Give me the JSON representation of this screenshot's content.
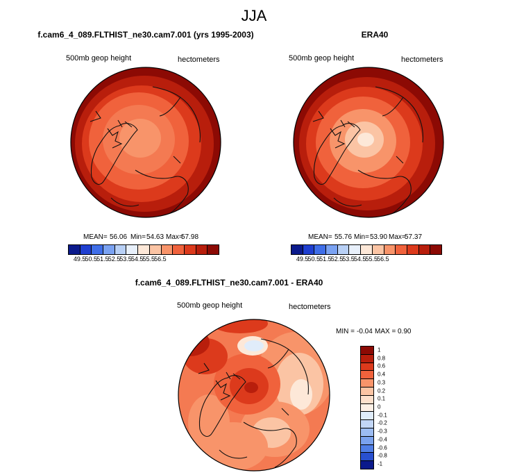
{
  "title": "JJA",
  "chart_data": [
    {
      "type": "heatmap",
      "title": "f.cam6_4_089.FLTHIST_ne30.cam7.001 (yrs 1995-2003)",
      "variable_label": "500mb geop height",
      "units_label": "hectometers",
      "stats": {
        "mean_label": "MEAN=",
        "mean": "56.06",
        "min_label": "Min=",
        "min": "54.63",
        "max_label": "Max=",
        "max": "57.98"
      },
      "colorbar_ticks": [
        "49.5",
        "50.5",
        "51.5",
        "52.5",
        "53.5",
        "54.5",
        "55.5",
        "56.5"
      ],
      "projection": "north polar stereographic"
    },
    {
      "type": "heatmap",
      "title": "ERA40",
      "variable_label": "500mb geop height",
      "units_label": "hectometers",
      "stats": {
        "mean_label": "MEAN=",
        "mean": "55.76",
        "min_label": "Min=",
        "min": "53.90",
        "max_label": "Max=",
        "max": "57.37"
      },
      "colorbar_ticks": [
        "49.5",
        "50.5",
        "51.5",
        "52.5",
        "53.5",
        "54.5",
        "55.5",
        "56.5"
      ],
      "projection": "north polar stereographic"
    },
    {
      "type": "heatmap",
      "title": "f.cam6_4_089.FLTHIST_ne30.cam7.001 - ERA40",
      "variable_label": "500mb geop height",
      "units_label": "hectometers",
      "stats": {
        "min_label": "MIN =",
        "min": "-0.04",
        "max_label": "MAX =",
        "max": "0.90"
      },
      "colorbar_ticks": [
        "1",
        "0.8",
        "0.6",
        "0.4",
        "0.3",
        "0.2",
        "0.1",
        "0",
        "-0.1",
        "-0.2",
        "-0.3",
        "-0.4",
        "-0.6",
        "-0.8",
        "-1"
      ],
      "projection": "north polar stereographic"
    }
  ],
  "colors": {
    "abs_scale": [
      "#0b1a8c",
      "#1f3fd0",
      "#3f6ee8",
      "#7aa2f2",
      "#b8d0f6",
      "#e8f0fb",
      "#fde8d8",
      "#fbc4a4",
      "#f8946a",
      "#f0623c",
      "#dc3a1c",
      "#b81e0c",
      "#8c0a04"
    ],
    "diff_scale": [
      "#8c0a04",
      "#b81e0c",
      "#dc3a1c",
      "#f0623c",
      "#f8946a",
      "#fbc4a4",
      "#fde0cc",
      "#fdf0e6",
      "#e0ecfa",
      "#c2d6f6",
      "#9cbcf2",
      "#7aa2ee",
      "#4f7ee6",
      "#2850d0",
      "#0b1a8c"
    ]
  }
}
